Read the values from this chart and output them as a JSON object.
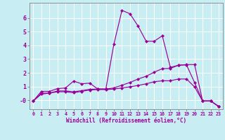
{
  "xlabel": "Windchill (Refroidissement éolien,°C)",
  "background_color": "#c8eef4",
  "line_color": "#990099",
  "grid_color": "#ffffff",
  "xlim": [
    -0.5,
    23.5
  ],
  "ylim": [
    -0.65,
    7.1
  ],
  "yticks": [
    0,
    1,
    2,
    3,
    4,
    5,
    6
  ],
  "ytick_labels": [
    "-0",
    "1",
    "2",
    "3",
    "4",
    "5",
    "6"
  ],
  "xticks": [
    0,
    1,
    2,
    3,
    4,
    5,
    6,
    7,
    8,
    9,
    10,
    11,
    12,
    13,
    14,
    15,
    16,
    17,
    18,
    19,
    20,
    21,
    22,
    23
  ],
  "line1_x": [
    0,
    1,
    2,
    3,
    4,
    5,
    6,
    7,
    8,
    9,
    10,
    11,
    12,
    13,
    14,
    15,
    16,
    17,
    18,
    19,
    20,
    21,
    22,
    23
  ],
  "line1_y": [
    -0.05,
    0.65,
    0.65,
    0.85,
    0.9,
    1.4,
    1.2,
    1.25,
    0.82,
    0.82,
    4.1,
    6.55,
    6.3,
    5.4,
    4.3,
    4.3,
    4.7,
    2.4,
    2.55,
    2.6,
    2.6,
    -0.05,
    -0.05,
    -0.45
  ],
  "line2_x": [
    0,
    1,
    2,
    3,
    4,
    5,
    6,
    7,
    8,
    9,
    10,
    11,
    12,
    13,
    14,
    15,
    16,
    17,
    18,
    19,
    20,
    21,
    22,
    23
  ],
  "line2_y": [
    -0.05,
    0.45,
    0.52,
    0.68,
    0.68,
    0.62,
    0.7,
    0.8,
    0.82,
    0.82,
    0.9,
    1.1,
    1.3,
    1.55,
    1.75,
    2.05,
    2.3,
    2.32,
    2.55,
    2.58,
    1.3,
    -0.05,
    -0.05,
    -0.45
  ],
  "line3_x": [
    0,
    1,
    2,
    3,
    4,
    5,
    6,
    7,
    8,
    9,
    10,
    11,
    12,
    13,
    14,
    15,
    16,
    17,
    18,
    19,
    20,
    21,
    22,
    23
  ],
  "line3_y": [
    -0.05,
    0.52,
    0.52,
    0.62,
    0.62,
    0.55,
    0.65,
    0.75,
    0.78,
    0.78,
    0.82,
    0.9,
    0.98,
    1.08,
    1.2,
    1.35,
    1.42,
    1.42,
    1.55,
    1.55,
    0.98,
    -0.05,
    -0.05,
    -0.45
  ],
  "xlabel_fontsize": 5.5,
  "tick_fontsize_x": 4.8,
  "tick_fontsize_y": 6.0,
  "linewidth": 0.85,
  "markersize": 2.2
}
